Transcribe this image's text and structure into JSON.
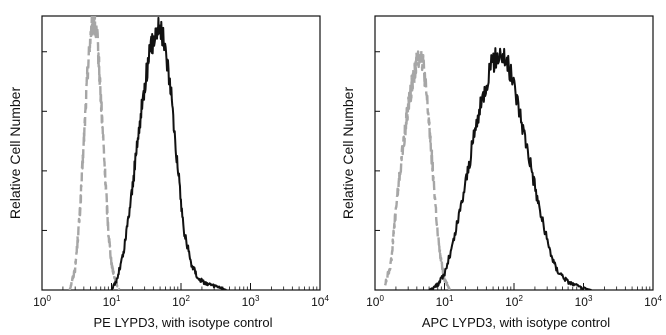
{
  "chart_data": [
    {
      "type": "line",
      "xlabel": "PE LYPD3, with isotype control",
      "ylabel": "Relative Cell Number",
      "x_scale": "log",
      "xlim": [
        1,
        10000
      ],
      "ylim": [
        0,
        1
      ],
      "x_ticks": [
        {
          "base": "10",
          "exp": "0"
        },
        {
          "base": "10",
          "exp": "1"
        },
        {
          "base": "10",
          "exp": "2"
        },
        {
          "base": "10",
          "exp": "3"
        },
        {
          "base": "10",
          "exp": "4"
        }
      ],
      "grid": false,
      "legend": "none",
      "series": [
        {
          "style": "dashed",
          "color": "#a6a6a6",
          "peak_x": 5.6,
          "x": [
            2.5,
            3.0,
            3.5,
            4.0,
            4.5,
            5.0,
            5.6,
            6.3,
            7.0,
            8.0,
            9.0,
            10.0,
            11.5,
            13.0
          ],
          "y": [
            0.0,
            0.08,
            0.28,
            0.55,
            0.8,
            0.95,
            1.0,
            0.92,
            0.72,
            0.45,
            0.22,
            0.1,
            0.03,
            0.0
          ]
        },
        {
          "style": "solid",
          "color": "#111111",
          "peak_x": 48,
          "x": [
            10,
            12,
            15,
            20,
            25,
            30,
            35,
            42,
            48,
            55,
            65,
            75,
            90,
            110,
            140,
            180,
            250,
            350,
            450
          ],
          "y": [
            0.0,
            0.04,
            0.14,
            0.38,
            0.6,
            0.76,
            0.87,
            0.95,
            0.98,
            0.94,
            0.83,
            0.68,
            0.45,
            0.22,
            0.1,
            0.04,
            0.02,
            0.01,
            0.0
          ]
        }
      ]
    },
    {
      "type": "line",
      "xlabel": "APC LYPD3, with isotype control",
      "ylabel": "Relative Cell Number",
      "x_scale": "log",
      "xlim": [
        1,
        10000
      ],
      "ylim": [
        0,
        1
      ],
      "x_ticks": [
        {
          "base": "10",
          "exp": "0"
        },
        {
          "base": "10",
          "exp": "1"
        },
        {
          "base": "10",
          "exp": "2"
        },
        {
          "base": "10",
          "exp": "3"
        },
        {
          "base": "10",
          "exp": "4"
        }
      ],
      "grid": false,
      "legend": "none",
      "series": [
        {
          "style": "dashed",
          "color": "#a6a6a6",
          "peak_x": 4.5,
          "x": [
            1.4,
            1.7,
            2.0,
            2.5,
            3.0,
            3.5,
            4.0,
            4.5,
            5.0,
            6.0,
            7.0,
            8.0,
            9.0,
            10.0,
            12.0
          ],
          "y": [
            0.02,
            0.1,
            0.3,
            0.52,
            0.68,
            0.78,
            0.85,
            0.88,
            0.83,
            0.62,
            0.4,
            0.2,
            0.1,
            0.04,
            0.0
          ]
        },
        {
          "style": "solid",
          "color": "#111111",
          "peak_x": 65,
          "x": [
            6,
            8,
            10,
            13,
            17,
            22,
            28,
            36,
            45,
            55,
            65,
            80,
            100,
            130,
            170,
            220,
            300,
            400,
            600,
            900,
            1300
          ],
          "y": [
            0.0,
            0.02,
            0.06,
            0.16,
            0.3,
            0.45,
            0.6,
            0.72,
            0.82,
            0.86,
            0.88,
            0.84,
            0.76,
            0.62,
            0.48,
            0.33,
            0.18,
            0.08,
            0.03,
            0.01,
            0.0
          ]
        }
      ]
    }
  ]
}
